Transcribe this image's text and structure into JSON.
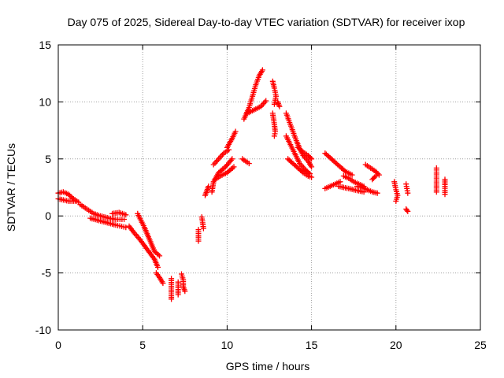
{
  "chart_data": {
    "type": "scatter",
    "title": "Day 075 of 2025, Sidereal Day-to-day VTEC variation (SDTVAR) for receiver ixop",
    "xlabel": "GPS time / hours",
    "ylabel": "SDTVAR / TECUs",
    "xlim": [
      0,
      25
    ],
    "ylim": [
      -10,
      15
    ],
    "xticks": [
      0,
      5,
      10,
      15,
      20,
      25
    ],
    "yticks": [
      -10,
      -5,
      0,
      5,
      10,
      15
    ],
    "grid": true,
    "marker": "+",
    "marker_color": "#ff0000",
    "series": [
      {
        "name": "SDTVAR",
        "tracks": [
          [
            [
              0.0,
              2.0
            ],
            [
              0.3,
              2.1
            ],
            [
              0.6,
              1.9
            ],
            [
              0.9,
              1.5
            ],
            [
              1.2,
              1.2
            ]
          ],
          [
            [
              0.0,
              1.5
            ],
            [
              0.3,
              1.4
            ],
            [
              0.6,
              1.3
            ],
            [
              1.0,
              1.3
            ]
          ],
          [
            [
              1.3,
              1.0
            ],
            [
              1.7,
              0.6
            ],
            [
              2.1,
              0.2
            ],
            [
              2.5,
              0.0
            ],
            [
              3.0,
              -0.2
            ],
            [
              3.4,
              -0.3
            ],
            [
              3.9,
              -0.3
            ]
          ],
          [
            [
              1.9,
              -0.2
            ],
            [
              2.4,
              -0.4
            ],
            [
              2.9,
              -0.6
            ],
            [
              3.4,
              -0.8
            ],
            [
              4.0,
              -1.0
            ]
          ],
          [
            [
              3.2,
              0.2
            ],
            [
              3.6,
              0.3
            ],
            [
              4.0,
              0.1
            ]
          ],
          [
            [
              4.2,
              -0.9
            ],
            [
              4.5,
              -1.5
            ],
            [
              4.8,
              -2.0
            ],
            [
              5.1,
              -2.6
            ],
            [
              5.4,
              -3.2
            ],
            [
              5.7,
              -3.8
            ],
            [
              5.9,
              -4.5
            ]
          ],
          [
            [
              4.7,
              0.2
            ],
            [
              4.9,
              -0.4
            ],
            [
              5.1,
              -1.0
            ],
            [
              5.3,
              -1.7
            ],
            [
              5.5,
              -2.4
            ],
            [
              5.7,
              -3.1
            ],
            [
              6.0,
              -3.5
            ]
          ],
          [
            [
              5.8,
              -5.0
            ],
            [
              6.0,
              -5.4
            ],
            [
              6.2,
              -5.9
            ]
          ],
          [
            [
              6.7,
              -5.5
            ],
            [
              6.7,
              -6.0
            ],
            [
              6.7,
              -6.5
            ],
            [
              6.7,
              -7.0
            ],
            [
              6.7,
              -7.3
            ]
          ],
          [
            [
              7.1,
              -5.8
            ],
            [
              7.1,
              -6.3
            ],
            [
              7.1,
              -6.9
            ]
          ],
          [
            [
              7.3,
              -5.1
            ],
            [
              7.4,
              -5.6
            ],
            [
              7.4,
              -6.2
            ],
            [
              7.5,
              -6.6
            ]
          ],
          [
            [
              8.3,
              -1.2
            ],
            [
              8.3,
              -1.7
            ],
            [
              8.3,
              -2.2
            ]
          ],
          [
            [
              8.5,
              -0.1
            ],
            [
              8.55,
              -0.6
            ],
            [
              8.6,
              -1.1
            ]
          ],
          [
            [
              8.7,
              1.8
            ],
            [
              8.8,
              2.2
            ],
            [
              8.9,
              2.6
            ]
          ],
          [
            [
              9.1,
              2.1
            ],
            [
              9.2,
              3.0
            ],
            [
              9.5,
              3.8
            ],
            [
              9.9,
              4.3
            ],
            [
              10.3,
              5.0
            ]
          ],
          [
            [
              9.2,
              4.5
            ],
            [
              9.5,
              5.0
            ],
            [
              9.8,
              5.5
            ],
            [
              10.1,
              5.8
            ]
          ],
          [
            [
              9.3,
              3.2
            ],
            [
              9.6,
              3.5
            ],
            [
              10.0,
              3.8
            ],
            [
              10.4,
              4.3
            ]
          ],
          [
            [
              10.0,
              6.0
            ],
            [
              10.3,
              6.8
            ],
            [
              10.5,
              7.4
            ]
          ],
          [
            [
              10.9,
              5.0
            ],
            [
              11.1,
              4.8
            ],
            [
              11.3,
              4.6
            ]
          ],
          [
            [
              11.0,
              8.5
            ],
            [
              11.3,
              9.5
            ],
            [
              11.5,
              10.5
            ],
            [
              11.7,
              11.5
            ],
            [
              11.9,
              12.3
            ],
            [
              12.1,
              12.8
            ]
          ],
          [
            [
              11.2,
              9.0
            ],
            [
              11.6,
              9.3
            ],
            [
              12.0,
              9.6
            ],
            [
              12.3,
              10.1
            ]
          ],
          [
            [
              12.7,
              11.8
            ],
            [
              12.8,
              11.2
            ],
            [
              12.9,
              10.5
            ],
            [
              12.8,
              9.8
            ]
          ],
          [
            [
              12.7,
              9.0
            ],
            [
              12.75,
              8.5
            ],
            [
              12.8,
              8.0
            ],
            [
              12.85,
              7.4
            ],
            [
              12.8,
              7.0
            ]
          ],
          [
            [
              13.0,
              10.0
            ],
            [
              13.1,
              9.6
            ]
          ],
          [
            [
              13.5,
              9.0
            ],
            [
              13.7,
              8.2
            ],
            [
              13.9,
              7.4
            ],
            [
              14.1,
              6.6
            ],
            [
              14.3,
              5.9
            ],
            [
              14.5,
              5.3
            ],
            [
              14.8,
              4.8
            ],
            [
              15.0,
              4.3
            ]
          ],
          [
            [
              13.5,
              7.0
            ],
            [
              13.7,
              6.4
            ],
            [
              13.9,
              5.8
            ],
            [
              14.1,
              5.2
            ],
            [
              14.3,
              4.6
            ],
            [
              14.6,
              4.1
            ],
            [
              14.9,
              3.7
            ]
          ],
          [
            [
              13.6,
              5.0
            ],
            [
              13.9,
              4.6
            ],
            [
              14.2,
              4.2
            ],
            [
              14.5,
              3.8
            ],
            [
              14.8,
              3.5
            ],
            [
              15.0,
              3.4
            ]
          ],
          [
            [
              14.2,
              6.0
            ],
            [
              14.5,
              5.6
            ],
            [
              14.8,
              5.3
            ],
            [
              15.0,
              5.0
            ]
          ],
          [
            [
              15.8,
              5.5
            ],
            [
              16.1,
              5.1
            ],
            [
              16.4,
              4.7
            ],
            [
              16.7,
              4.3
            ],
            [
              17.0,
              3.9
            ],
            [
              17.4,
              3.6
            ]
          ],
          [
            [
              15.8,
              2.4
            ],
            [
              16.1,
              2.6
            ],
            [
              16.4,
              2.8
            ],
            [
              16.7,
              3.0
            ]
          ],
          [
            [
              16.6,
              2.6
            ],
            [
              16.9,
              2.5
            ],
            [
              17.2,
              2.4
            ],
            [
              17.5,
              2.3
            ],
            [
              17.8,
              2.2
            ],
            [
              18.1,
              2.1
            ]
          ],
          [
            [
              16.9,
              3.5
            ],
            [
              17.2,
              3.3
            ],
            [
              17.5,
              3.0
            ],
            [
              17.8,
              2.8
            ],
            [
              18.1,
              2.6
            ]
          ],
          [
            [
              17.7,
              2.6
            ],
            [
              18.0,
              2.5
            ],
            [
              18.3,
              2.3
            ],
            [
              18.6,
              2.1
            ],
            [
              18.9,
              2.0
            ]
          ],
          [
            [
              18.2,
              4.5
            ],
            [
              18.5,
              4.2
            ],
            [
              18.8,
              3.9
            ],
            [
              19.0,
              3.6
            ]
          ],
          [
            [
              18.6,
              3.2
            ],
            [
              18.8,
              3.5
            ]
          ],
          [
            [
              19.9,
              3.0
            ],
            [
              20.0,
              2.3
            ],
            [
              20.1,
              1.8
            ],
            [
              20.0,
              1.3
            ]
          ],
          [
            [
              20.6,
              2.8
            ],
            [
              20.65,
              2.4
            ],
            [
              20.7,
              2.0
            ]
          ],
          [
            [
              20.6,
              0.6
            ],
            [
              20.7,
              0.4
            ]
          ],
          [
            [
              22.4,
              4.2
            ],
            [
              22.4,
              3.5
            ],
            [
              22.4,
              2.8
            ],
            [
              22.4,
              2.1
            ]
          ],
          [
            [
              22.9,
              3.2
            ],
            [
              22.9,
              2.6
            ],
            [
              22.9,
              1.9
            ]
          ]
        ]
      }
    ]
  }
}
